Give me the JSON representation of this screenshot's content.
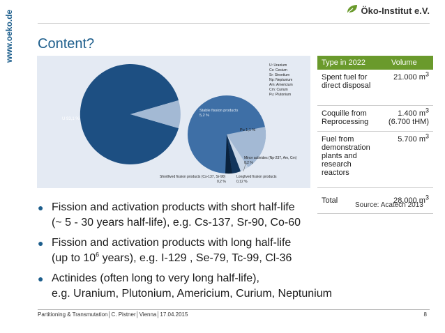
{
  "sidebar": {
    "url": "www.oeko.de"
  },
  "logo": {
    "text": "Öko-Institut e.V."
  },
  "title": "Content?",
  "figure": {
    "main_label": "U 93,1 %",
    "legend": [
      "U: Uranium",
      "Cs: Cesium",
      "Sr: Strontium",
      "Np: Neptunium",
      "Am: Americium",
      "Cm: Curium",
      "Pu: Plutonium"
    ],
    "stable_label": "Stable fission products",
    "stable_value": "5,2 %",
    "pu_label": "Pu 1,1 %",
    "minor_label": "Minor actinides (Np-237, Am, Cm)",
    "minor_value": "0,2 %",
    "short_label": "Shortlived fission products (Cs-137, Sr-90)",
    "short_value": "0,2 %",
    "long_label": "Longlived fission products",
    "long_value": "0,12 %",
    "colors": {
      "main": "#1d4f82",
      "detail": "#3e6fa6",
      "light": "#a3b9d4",
      "bg": "#e4eaf3"
    }
  },
  "table": {
    "headers": [
      "Type in 2022",
      "Volume"
    ],
    "rows": [
      {
        "type": "Spent fuel for direct disposal",
        "volume": "21.000 m",
        "sup": "3",
        "volume2": ""
      },
      {
        "type": "Coquille from Reprocessing",
        "volume": "1.400 m",
        "sup": "3",
        "volume2": "(6.700 tHM)"
      },
      {
        "type": "Fuel from demonstration plants and research reactors",
        "volume": "5.700 m",
        "sup": "3",
        "volume2": ""
      },
      {
        "type": "Total",
        "volume": "28.000 m",
        "sup": "3",
        "volume2": ""
      }
    ],
    "header_color": "#6a9a2c"
  },
  "source": "Source: Acatech 2013",
  "bullets": [
    {
      "line1": "Fission and activation products with short half-life",
      "line2": "(~ 5 - 30 years half-life), e.g. Cs-137, Sr-90, Co-60"
    },
    {
      "line1": "Fission and activation products with long half-life",
      "line2a": "(up to 10",
      "line2sup": "6",
      "line2b": " years), e.g. I-129 , Se-79, Tc-99, Cl-36"
    },
    {
      "line1": "Actinides (often long to very long half-life),",
      "line2": "e.g. Uranium, Plutonium, Americium, Curium, Neptunium"
    }
  ],
  "footer": {
    "text": "Partitioning & Transmutation│C. Pistner│Vienna│17.04.2015",
    "page": "8"
  }
}
